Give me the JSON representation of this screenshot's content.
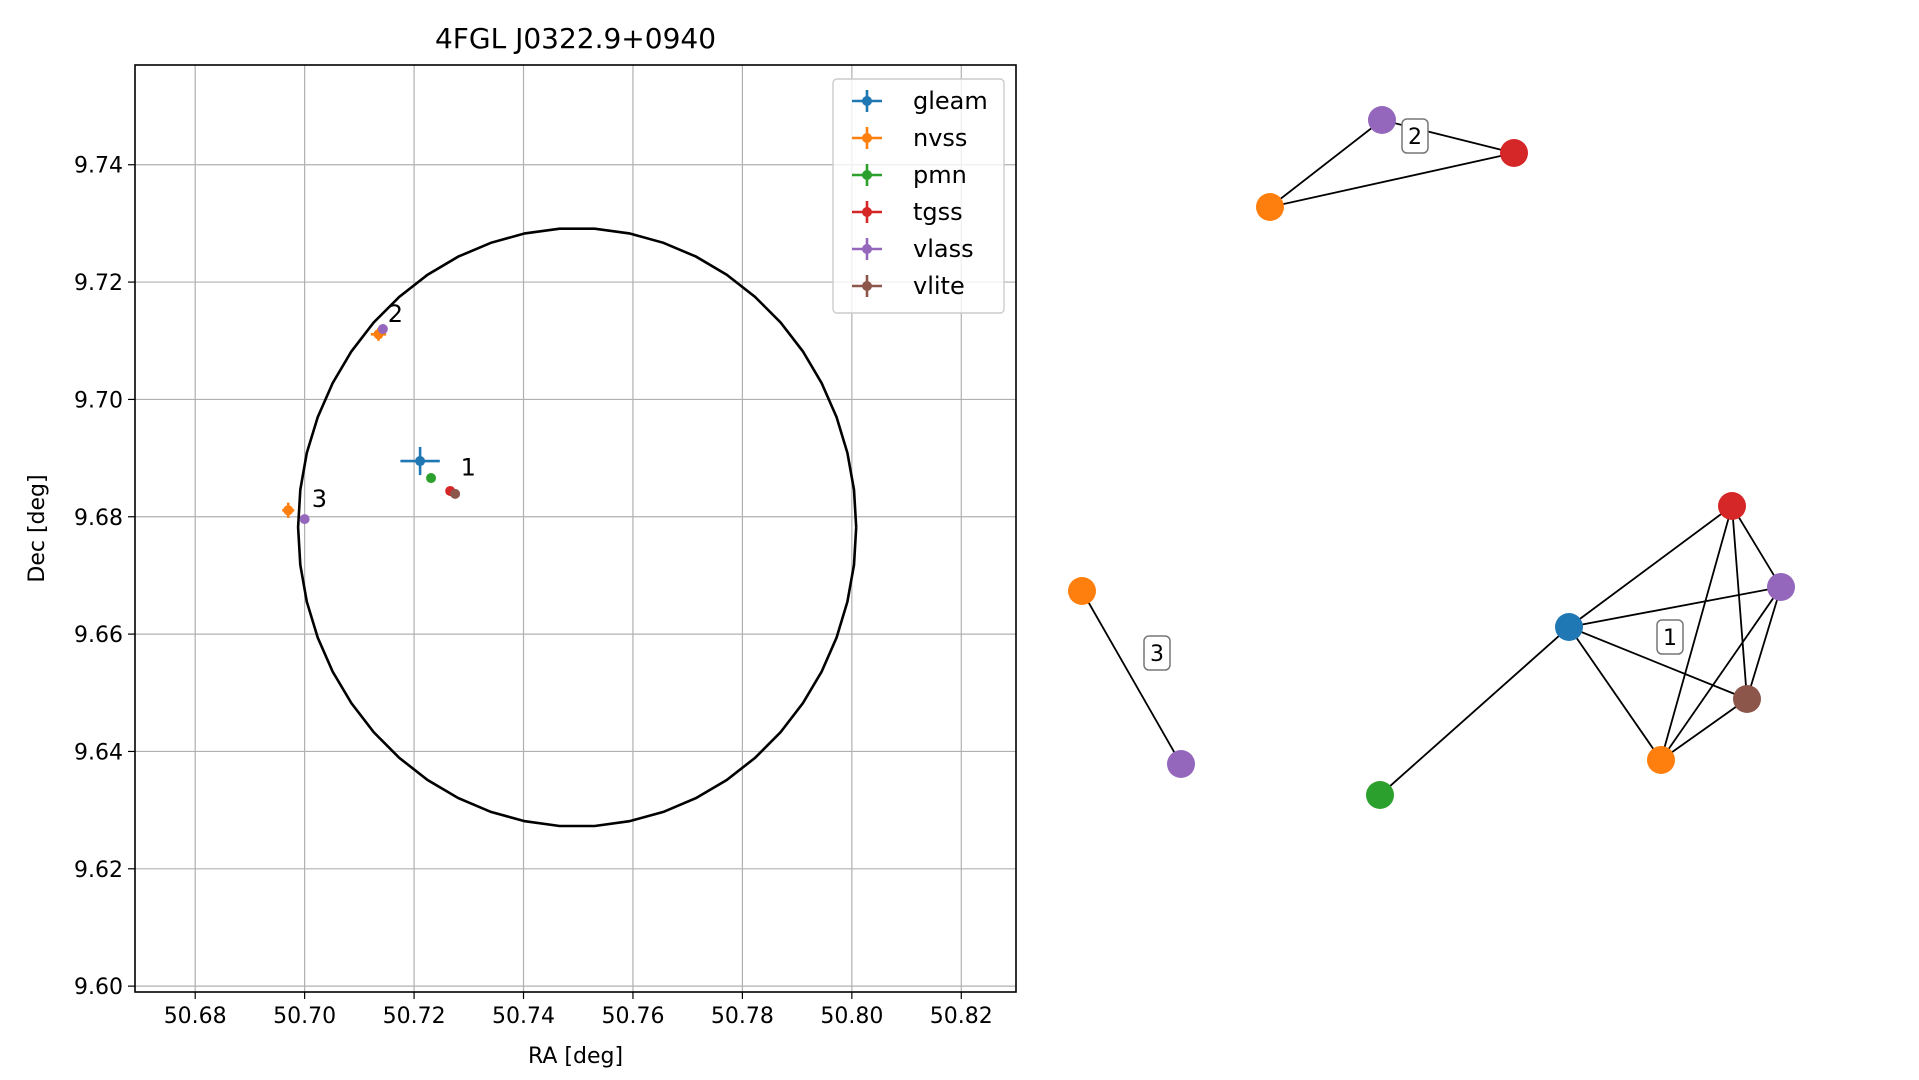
{
  "chart_data": [
    {
      "type": "scatter",
      "title": "4FGL J0322.9+0940",
      "xlabel": "RA [deg]",
      "ylabel": "Dec [deg]",
      "xlim": [
        50.669,
        50.83
      ],
      "ylim": [
        9.599,
        9.757
      ],
      "x_ticks": [
        50.68,
        50.7,
        50.72,
        50.74,
        50.76,
        50.78,
        50.8,
        50.82
      ],
      "y_ticks": [
        9.6,
        9.62,
        9.64,
        9.66,
        9.68,
        9.7,
        9.72,
        9.74
      ],
      "x_tick_labels": [
        "50.68",
        "50.70",
        "50.72",
        "50.74",
        "50.76",
        "50.78",
        "50.80",
        "50.82"
      ],
      "y_tick_labels": [
        "9.60",
        "9.62",
        "9.64",
        "9.66",
        "9.68",
        "9.70",
        "9.72",
        "9.74"
      ],
      "grid": true,
      "legend_position": "top-right",
      "circle": {
        "center": [
          50.7498,
          9.6782
        ],
        "radius": 0.051
      },
      "series": [
        {
          "name": "gleam",
          "color": "#1f77b4",
          "points": [
            {
              "x": 50.7211,
              "y": 9.6895,
              "xerr": 0.0036,
              "yerr": 0.0024
            }
          ]
        },
        {
          "name": "nvss",
          "color": "#ff7f0e",
          "points": [
            {
              "x": 50.7135,
              "y": 9.7111,
              "xerr": 0.0014,
              "yerr": 0.0011
            },
            {
              "x": 50.697,
              "y": 9.6811,
              "xerr": 0.0011,
              "yerr": 0.0013
            }
          ]
        },
        {
          "name": "pmn",
          "color": "#2ca02c",
          "points": [
            {
              "x": 50.7231,
              "y": 9.6866,
              "xerr": 0,
              "yerr": 0
            }
          ]
        },
        {
          "name": "tgss",
          "color": "#d62728",
          "points": [
            {
              "x": 50.7266,
              "y": 9.6844,
              "xerr": 0,
              "yerr": 0
            }
          ]
        },
        {
          "name": "vlass",
          "color": "#9467bd",
          "points": [
            {
              "x": 50.7143,
              "y": 9.712,
              "xerr": 0,
              "yerr": 0
            },
            {
              "x": 50.7,
              "y": 9.6796,
              "xerr": 0,
              "yerr": 0
            }
          ]
        },
        {
          "name": "vlite",
          "color": "#8c564b",
          "points": [
            {
              "x": 50.7275,
              "y": 9.6839,
              "xerr": 0,
              "yerr": 0
            }
          ]
        }
      ],
      "annotations": [
        {
          "text": "1",
          "x": 50.7285,
          "y": 9.687
        },
        {
          "text": "2",
          "x": 50.7152,
          "y": 9.7132
        },
        {
          "text": "3",
          "x": 50.7013,
          "y": 9.6817
        }
      ]
    },
    {
      "type": "network",
      "nodes": [
        {
          "id": "c2-vlass",
          "catalog": "vlass",
          "color": "#9467bd"
        },
        {
          "id": "c2-tgss",
          "catalog": "tgss",
          "color": "#d62728"
        },
        {
          "id": "c2-nvss",
          "catalog": "nvss",
          "color": "#ff7f0e"
        },
        {
          "id": "c3-nvss",
          "catalog": "nvss",
          "color": "#ff7f0e"
        },
        {
          "id": "c3-vlass",
          "catalog": "vlass",
          "color": "#9467bd"
        },
        {
          "id": "c1-tgss",
          "catalog": "tgss",
          "color": "#d62728"
        },
        {
          "id": "c1-vlass",
          "catalog": "vlass",
          "color": "#9467bd"
        },
        {
          "id": "c1-gleam",
          "catalog": "gleam",
          "color": "#1f77b4"
        },
        {
          "id": "c1-vlite",
          "catalog": "vlite",
          "color": "#8c564b"
        },
        {
          "id": "c1-nvss",
          "catalog": "nvss",
          "color": "#ff7f0e"
        },
        {
          "id": "c1-pmn",
          "catalog": "pmn",
          "color": "#2ca02c"
        }
      ],
      "edges": [
        [
          "c2-nvss",
          "c2-vlass"
        ],
        [
          "c2-nvss",
          "c2-tgss"
        ],
        [
          "c2-vlass",
          "c2-tgss"
        ],
        [
          "c3-nvss",
          "c3-vlass"
        ],
        [
          "c1-gleam",
          "c1-tgss"
        ],
        [
          "c1-gleam",
          "c1-vlass"
        ],
        [
          "c1-gleam",
          "c1-vlite"
        ],
        [
          "c1-gleam",
          "c1-nvss"
        ],
        [
          "c1-gleam",
          "c1-pmn"
        ],
        [
          "c1-tgss",
          "c1-vlass"
        ],
        [
          "c1-tgss",
          "c1-vlite"
        ],
        [
          "c1-tgss",
          "c1-nvss"
        ],
        [
          "c1-vlass",
          "c1-vlite"
        ],
        [
          "c1-vlass",
          "c1-nvss"
        ],
        [
          "c1-vlite",
          "c1-nvss"
        ]
      ],
      "cluster_labels": [
        "1",
        "2",
        "3"
      ]
    }
  ]
}
